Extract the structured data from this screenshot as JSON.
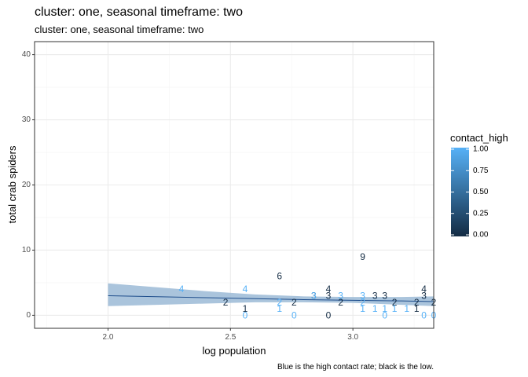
{
  "title": "cluster: one, seasonal timeframe: two",
  "subtitle": "cluster: one, seasonal timeframe: two",
  "caption": "Blue is the high contact rate; black is the low.",
  "colors": {
    "low": "#132B43",
    "high": "#56B1F7",
    "band": "#9BBAD6",
    "line": "#1F4E8C",
    "panel_border": "#333333",
    "grid_major": "#EBEBEB",
    "grid_minor": "#F5F5F5"
  },
  "chart_data": {
    "type": "scatter",
    "xlabel": "log population",
    "ylabel": "total crab spiders",
    "xlim": [
      1.7,
      3.33
    ],
    "ylim": [
      -2,
      42
    ],
    "x_ticks": [
      2.0,
      2.5,
      3.0
    ],
    "y_ticks": [
      0,
      10,
      20,
      30,
      40
    ],
    "x_tick_labels": [
      "2.0",
      "2.5",
      "3.0"
    ],
    "y_tick_labels": [
      "0",
      "10",
      "20",
      "30",
      "40"
    ],
    "grid": true,
    "legend": {
      "title": "contact_high",
      "position": "right",
      "tick_values": [
        0.0,
        0.25,
        0.5,
        0.75,
        1.0
      ],
      "tick_labels": [
        "0.00",
        "0.25",
        "0.50",
        "0.75",
        "1.00"
      ]
    },
    "points": [
      {
        "x": 2.3,
        "y": 4,
        "label": "4",
        "contact_high": 1
      },
      {
        "x": 2.48,
        "y": 2,
        "label": "2",
        "contact_high": 0
      },
      {
        "x": 2.56,
        "y": 4,
        "label": "4",
        "contact_high": 1
      },
      {
        "x": 2.56,
        "y": 1,
        "label": "1",
        "contact_high": 0
      },
      {
        "x": 2.56,
        "y": 0,
        "label": "0",
        "contact_high": 1
      },
      {
        "x": 2.7,
        "y": 6,
        "label": "6",
        "contact_high": 0
      },
      {
        "x": 2.7,
        "y": 2,
        "label": "2",
        "contact_high": 1
      },
      {
        "x": 2.7,
        "y": 1,
        "label": "1",
        "contact_high": 1
      },
      {
        "x": 2.76,
        "y": 2,
        "label": "2",
        "contact_high": 0
      },
      {
        "x": 2.76,
        "y": 0,
        "label": "0",
        "contact_high": 1
      },
      {
        "x": 2.84,
        "y": 3,
        "label": "3",
        "contact_high": 0
      },
      {
        "x": 2.84,
        "y": 3,
        "label": "3",
        "contact_high": 1
      },
      {
        "x": 2.9,
        "y": 4,
        "label": "4",
        "contact_high": 0
      },
      {
        "x": 2.9,
        "y": 3,
        "label": "3",
        "contact_high": 0
      },
      {
        "x": 2.9,
        "y": 0,
        "label": "0",
        "contact_high": 0
      },
      {
        "x": 2.95,
        "y": 3,
        "label": "3",
        "contact_high": 1
      },
      {
        "x": 2.95,
        "y": 2,
        "label": "2",
        "contact_high": 0
      },
      {
        "x": 3.04,
        "y": 9,
        "label": "9",
        "contact_high": 0
      },
      {
        "x": 3.04,
        "y": 3,
        "label": "3",
        "contact_high": 1
      },
      {
        "x": 3.04,
        "y": 2,
        "label": "2",
        "contact_high": 1
      },
      {
        "x": 3.04,
        "y": 1,
        "label": "1",
        "contact_high": 1
      },
      {
        "x": 3.09,
        "y": 3,
        "label": "3",
        "contact_high": 0
      },
      {
        "x": 3.09,
        "y": 1,
        "label": "1",
        "contact_high": 1
      },
      {
        "x": 3.13,
        "y": 3,
        "label": "3",
        "contact_high": 0
      },
      {
        "x": 3.13,
        "y": 1,
        "label": "1",
        "contact_high": 1
      },
      {
        "x": 3.13,
        "y": 0,
        "label": "0",
        "contact_high": 1
      },
      {
        "x": 3.17,
        "y": 2,
        "label": "2",
        "contact_high": 0
      },
      {
        "x": 3.17,
        "y": 1,
        "label": "1",
        "contact_high": 1
      },
      {
        "x": 3.22,
        "y": 1,
        "label": "1",
        "contact_high": 1
      },
      {
        "x": 3.26,
        "y": 2,
        "label": "2",
        "contact_high": 0
      },
      {
        "x": 3.26,
        "y": 1,
        "label": "1",
        "contact_high": 0
      },
      {
        "x": 3.29,
        "y": 4,
        "label": "4",
        "contact_high": 0
      },
      {
        "x": 3.29,
        "y": 3,
        "label": "3",
        "contact_high": 0
      },
      {
        "x": 3.29,
        "y": 0,
        "label": "0",
        "contact_high": 1
      },
      {
        "x": 3.33,
        "y": 2,
        "label": "2",
        "contact_high": 0
      },
      {
        "x": 3.33,
        "y": 0,
        "label": "0",
        "contact_high": 1
      }
    ],
    "fit": {
      "x": [
        2.0,
        2.2,
        2.4,
        2.6,
        2.8,
        3.0,
        3.2,
        3.33
      ],
      "y": [
        3.0,
        2.85,
        2.7,
        2.55,
        2.4,
        2.3,
        2.2,
        2.1
      ],
      "lower": [
        1.4,
        1.6,
        1.8,
        2.0,
        2.0,
        1.9,
        1.6,
        1.4
      ],
      "upper": [
        4.9,
        4.3,
        3.7,
        3.2,
        2.9,
        2.8,
        2.8,
        2.9
      ]
    }
  }
}
